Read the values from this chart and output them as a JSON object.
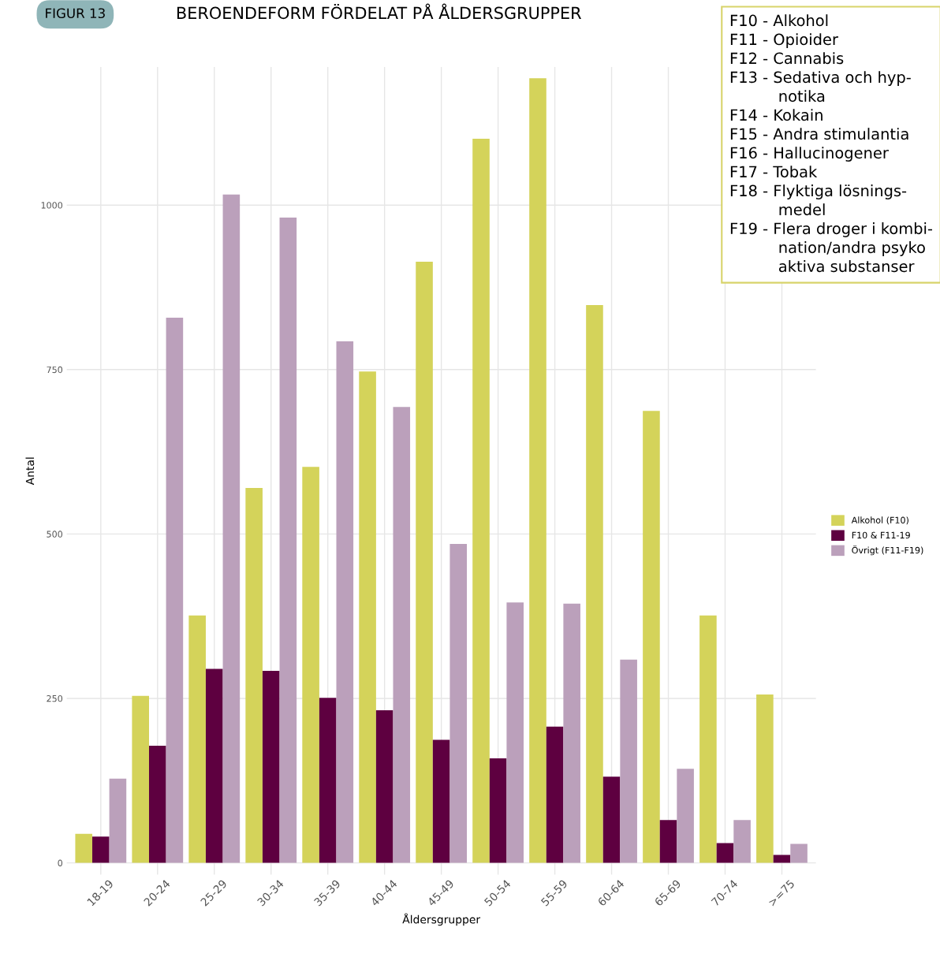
{
  "chart_data": {
    "type": "bar",
    "title": "BEROENDEFORM FÖRDELAT PÅ ÅLDERSGRUPPER",
    "xlabel": "Åldersgrupper",
    "ylabel": "Antal",
    "categories": [
      "18-19",
      "20-24",
      "25-29",
      "30-34",
      "35-39",
      "40-44",
      "45-49",
      "50-54",
      "55-59",
      "60-64",
      "65-69",
      "70-74",
      ">=75"
    ],
    "series": [
      {
        "name": "Alkohol (F10)",
        "color": "#d4d35a",
        "values": [
          44,
          254,
          376,
          570,
          602,
          747,
          914,
          1101,
          1193,
          848,
          687,
          376,
          256
        ]
      },
      {
        "name": "F10 & F11-19",
        "color": "#5e0040",
        "values": [
          40,
          178,
          295,
          292,
          251,
          232,
          187,
          159,
          207,
          131,
          65,
          30,
          12
        ]
      },
      {
        "name": "Övrigt (F11-F19)",
        "color": "#bba0bb",
        "values": [
          128,
          829,
          1016,
          981,
          793,
          693,
          485,
          396,
          394,
          309,
          143,
          65,
          29
        ]
      }
    ],
    "ylim": [
      -18,
      1210
    ],
    "yticks": [
      0,
      250,
      500,
      750,
      1000
    ],
    "grid": true,
    "legend": "right",
    "annotations": [
      "FIGUR 13",
      "F10 - Alkohol\nF11 - Opioider\nF12 - Cannabis\nF13 - Sedativa och hyp-\n          notika\nF14 - Kokain\nF15 - Andra stimulantia\nF16 - Hallucinogener\nF17 - Tobak\nF18 - Flyktiga lösnings-\n          medel\nF19 - Flera droger i kombi-\n          nation/andra psyko\n          aktiva substanser"
    ]
  }
}
